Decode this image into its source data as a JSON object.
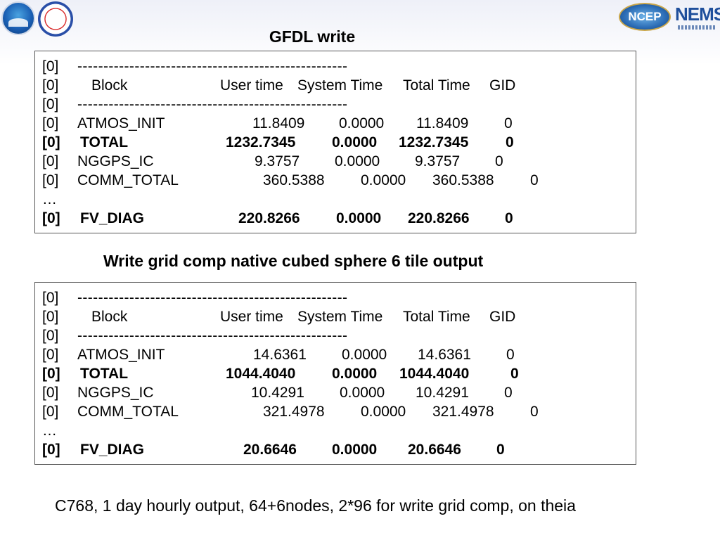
{
  "title": "GFDL write",
  "subtitle": "Write grid comp native cubed sphere 6 tile output",
  "logos": {
    "ncep": "NCEP",
    "nems": "NEMS"
  },
  "separator": "----------------------------------------------------",
  "table1": {
    "header": {
      "index": "[0]",
      "block": "Block",
      "user": "User time",
      "system": "System Time",
      "total": "Total Time",
      "gid": "GID"
    },
    "rows": [
      {
        "index": "[0]",
        "name": "ATMOS_INIT",
        "user": "11.8409",
        "system": "0.0000",
        "total": "11.8409",
        "gid": "0"
      },
      {
        "index": "[0]",
        "name": "TOTAL",
        "user": "1232.7345",
        "system": "0.0000",
        "total": "1232.7345",
        "gid": "0"
      },
      {
        "index": "[0]",
        "name": "NGGPS_IC",
        "user": "9.3757",
        "system": "0.0000",
        "total": "9.3757",
        "gid": "0"
      },
      {
        "index": "[0]",
        "name": "COMM_TOTAL",
        "user": "360.5388",
        "system": "0.0000",
        "total": "360.5388",
        "gid": "0"
      },
      {
        "index": "…"
      },
      {
        "index": "[0]",
        "name": "FV_DIAG",
        "user": "220.8266",
        "system": "0.0000",
        "total": "220.8266",
        "gid": "0"
      }
    ]
  },
  "table2": {
    "header": {
      "index": "[0]",
      "block": "Block",
      "user": "User time",
      "system": "System Time",
      "total": "Total Time",
      "gid": "GID"
    },
    "rows": [
      {
        "index": "[0]",
        "name": "ATMOS_INIT",
        "user": "14.6361",
        "system": "0.0000",
        "total": "14.6361",
        "gid": "0"
      },
      {
        "index": "[0]",
        "name": "TOTAL",
        "user": "1044.4040",
        "system": "0.0000",
        "total": "1044.4040",
        "gid": "0"
      },
      {
        "index": "[0]",
        "name": "NGGPS_IC",
        "user": "10.4291",
        "system": "0.0000",
        "total": "10.4291",
        "gid": "0"
      },
      {
        "index": "[0]",
        "name": "COMM_TOTAL",
        "user": "321.4978",
        "system": "0.0000",
        "total": "321.4978",
        "gid": "0"
      },
      {
        "index": "…"
      },
      {
        "index": "[0]",
        "name": "FV_DIAG",
        "user": "20.6646",
        "system": "0.0000",
        "total": "20.6646",
        "gid": "0"
      }
    ]
  },
  "footer": "C768, 1 day hourly output, 64+6nodes, 2*96 for write grid comp, on theia"
}
